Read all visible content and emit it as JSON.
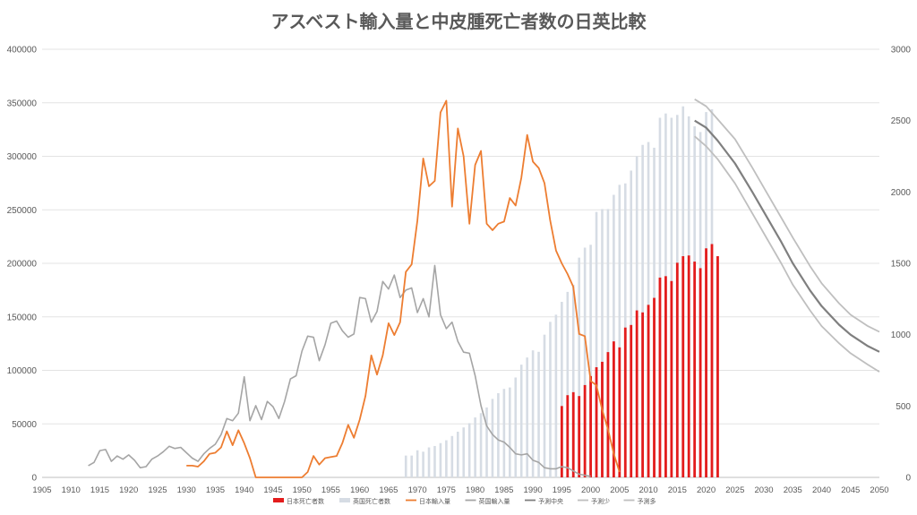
{
  "chart_data": {
    "type": "bar",
    "title": "アスベスト輸入量と中皮腫死亡者数の日英比較",
    "xlabel": "",
    "ylabel": "",
    "y2label": "",
    "xlim": [
      1905,
      2050
    ],
    "ylim": [
      0,
      400000
    ],
    "y2lim": [
      0,
      3000
    ],
    "x_ticks": [
      "1905",
      "1910",
      "1915",
      "1920",
      "1925",
      "1930",
      "1935",
      "1940",
      "1945",
      "1950",
      "1955",
      "1960",
      "1965",
      "1970",
      "1975",
      "1980",
      "1985",
      "1990",
      "1995",
      "2000",
      "2005",
      "2010",
      "2015",
      "2020",
      "2025",
      "2030",
      "2035",
      "2040",
      "2045",
      "2050"
    ],
    "y_ticks": [
      "0",
      "50000",
      "100000",
      "150000",
      "200000",
      "250000",
      "300000",
      "350000",
      "400000"
    ],
    "y2_ticks": [
      "0",
      "500",
      "1000",
      "1500",
      "2000",
      "2500",
      "3000"
    ],
    "grid": true,
    "legend_position": "bottom",
    "colors": {
      "japan_deaths": "#e31c1c",
      "uk_deaths": "#d6dce4",
      "japan_imports": "#ed7d31",
      "uk_imports": "#a5a5a5",
      "forecast_center": "#7f7f7f",
      "forecast_low": "#bfbfbf",
      "forecast_high": "#bfbfbf"
    },
    "series": [
      {
        "name": "日本死亡者数",
        "type": "bar",
        "axis": "right",
        "x": [
          1995,
          1996,
          1997,
          1998,
          1999,
          2000,
          2001,
          2002,
          2003,
          2004,
          2005,
          2006,
          2007,
          2008,
          2009,
          2010,
          2011,
          2012,
          2013,
          2014,
          2015,
          2016,
          2017,
          2018,
          2019,
          2020,
          2021,
          2022
        ],
        "values": [
          500,
          576,
          597,
          570,
          647,
          710,
          772,
          810,
          878,
          953,
          911,
          1050,
          1068,
          1170,
          1156,
          1209,
          1258,
          1400,
          1410,
          1376,
          1504,
          1550,
          1555,
          1512,
          1466,
          1605,
          1635,
          1550
        ]
      },
      {
        "name": "英国死亡者数",
        "type": "bar",
        "axis": "right",
        "x": [
          1968,
          1969,
          1970,
          1971,
          1972,
          1973,
          1974,
          1975,
          1976,
          1977,
          1978,
          1979,
          1980,
          1981,
          1982,
          1983,
          1984,
          1985,
          1986,
          1987,
          1988,
          1989,
          1990,
          1991,
          1992,
          1993,
          1994,
          1995,
          1996,
          1997,
          1998,
          1999,
          2000,
          2001,
          2002,
          2003,
          2004,
          2005,
          2006,
          2007,
          2008,
          2009,
          2010,
          2011,
          2012,
          2013,
          2014,
          2015,
          2016,
          2017,
          2018,
          2019,
          2020,
          2021
        ],
        "values": [
          153,
          153,
          190,
          180,
          210,
          220,
          240,
          260,
          290,
          320,
          350,
          380,
          420,
          450,
          490,
          550,
          590,
          620,
          630,
          700,
          790,
          840,
          890,
          880,
          1000,
          1090,
          1140,
          1230,
          1300,
          1350,
          1540,
          1610,
          1630,
          1860,
          1880,
          1880,
          1980,
          2050,
          2060,
          2150,
          2250,
          2330,
          2350,
          2310,
          2520,
          2550,
          2520,
          2540,
          2600,
          2530,
          2460,
          2420,
          2560,
          2580
        ]
      },
      {
        "name": "日本輸入量",
        "type": "line",
        "axis": "left",
        "x": [
          1930,
          1931,
          1932,
          1933,
          1934,
          1935,
          1936,
          1937,
          1938,
          1939,
          1940,
          1941,
          1942,
          1943,
          1944,
          1945,
          1946,
          1947,
          1948,
          1949,
          1950,
          1951,
          1952,
          1953,
          1954,
          1955,
          1956,
          1957,
          1958,
          1959,
          1960,
          1961,
          1962,
          1963,
          1964,
          1965,
          1966,
          1967,
          1968,
          1969,
          1970,
          1971,
          1972,
          1973,
          1974,
          1975,
          1976,
          1977,
          1978,
          1979,
          1980,
          1981,
          1982,
          1983,
          1984,
          1985,
          1986,
          1987,
          1988,
          1989,
          1990,
          1991,
          1992,
          1993,
          1994,
          1995,
          1996,
          1997,
          1998,
          1999,
          2000,
          2001,
          2002,
          2003,
          2004,
          2005
        ],
        "values": [
          11000,
          11000,
          10000,
          15000,
          22000,
          23000,
          28000,
          43000,
          30000,
          44000,
          32000,
          18000,
          0,
          0,
          0,
          0,
          0,
          0,
          0,
          0,
          0,
          5000,
          20000,
          12000,
          18000,
          19000,
          20000,
          32000,
          49000,
          37000,
          54000,
          76000,
          114000,
          96000,
          114000,
          144000,
          133000,
          145000,
          192000,
          199000,
          240000,
          298000,
          272000,
          277000,
          341000,
          352000,
          253000,
          326000,
          300000,
          237000,
          292000,
          305000,
          237000,
          231000,
          237000,
          239000,
          261000,
          254000,
          280000,
          320000,
          295000,
          289000,
          275000,
          240000,
          212000,
          200000,
          190000,
          178000,
          134000,
          132000,
          90000,
          86000,
          63000,
          45000,
          22000,
          5000
        ]
      },
      {
        "name": "英国輸入量",
        "type": "line",
        "axis": "left",
        "x": [
          1913,
          1914,
          1915,
          1916,
          1917,
          1918,
          1919,
          1920,
          1921,
          1922,
          1923,
          1924,
          1925,
          1926,
          1927,
          1928,
          1929,
          1930,
          1931,
          1932,
          1933,
          1934,
          1935,
          1936,
          1937,
          1938,
          1939,
          1940,
          1941,
          1942,
          1943,
          1944,
          1945,
          1946,
          1947,
          1948,
          1949,
          1950,
          1951,
          1952,
          1953,
          1954,
          1955,
          1956,
          1957,
          1958,
          1959,
          1960,
          1961,
          1962,
          1963,
          1964,
          1965,
          1966,
          1967,
          1968,
          1969,
          1970,
          1971,
          1972,
          1973,
          1974,
          1975,
          1976,
          1977,
          1978,
          1979,
          1980,
          1981,
          1982,
          1983,
          1984,
          1985,
          1986,
          1987,
          1988,
          1989,
          1990,
          1991,
          1992,
          1993,
          1994,
          1995,
          1996,
          1997,
          1998,
          1999,
          2000
        ],
        "values": [
          11000,
          14000,
          25000,
          26000,
          15000,
          20000,
          17000,
          21000,
          16000,
          9000,
          10000,
          17000,
          20000,
          24000,
          29000,
          27000,
          28000,
          23000,
          18000,
          15000,
          22000,
          27000,
          31000,
          40000,
          55000,
          53000,
          60000,
          94000,
          53000,
          67000,
          54000,
          71000,
          66000,
          55000,
          71000,
          92000,
          95000,
          118000,
          132000,
          131000,
          109000,
          124000,
          144000,
          146000,
          137000,
          131000,
          134000,
          168000,
          167000,
          145000,
          155000,
          183000,
          176000,
          189000,
          168000,
          175000,
          177000,
          154000,
          167000,
          150000,
          198000,
          152000,
          139000,
          145000,
          127000,
          117000,
          116000,
          95000,
          67000,
          48000,
          40000,
          35000,
          33000,
          28000,
          22000,
          21000,
          22000,
          16000,
          14000,
          9000,
          8000,
          8000,
          10000,
          9000,
          6000,
          3000,
          2000,
          1000
        ]
      },
      {
        "name": "予測中央",
        "type": "line",
        "axis": "right",
        "x": [
          2018,
          2020,
          2022,
          2025,
          2028,
          2030,
          2033,
          2035,
          2038,
          2040,
          2043,
          2045,
          2048,
          2050
        ],
        "values": [
          2500,
          2450,
          2360,
          2200,
          2000,
          1860,
          1650,
          1500,
          1310,
          1200,
          1070,
          1000,
          920,
          880
        ]
      },
      {
        "name": "予測少",
        "type": "line",
        "axis": "right",
        "x": [
          2018,
          2020,
          2022,
          2025,
          2028,
          2030,
          2033,
          2035,
          2038,
          2040,
          2043,
          2045,
          2048,
          2050
        ],
        "values": [
          2390,
          2320,
          2230,
          2060,
          1850,
          1710,
          1500,
          1350,
          1170,
          1060,
          940,
          870,
          790,
          740
        ]
      },
      {
        "name": "予測多",
        "type": "line",
        "axis": "right",
        "x": [
          2018,
          2020,
          2022,
          2025,
          2028,
          2030,
          2033,
          2035,
          2038,
          2040,
          2043,
          2045,
          2048,
          2050
        ],
        "values": [
          2650,
          2600,
          2510,
          2370,
          2170,
          2030,
          1820,
          1680,
          1480,
          1360,
          1220,
          1140,
          1060,
          1020
        ]
      }
    ]
  }
}
